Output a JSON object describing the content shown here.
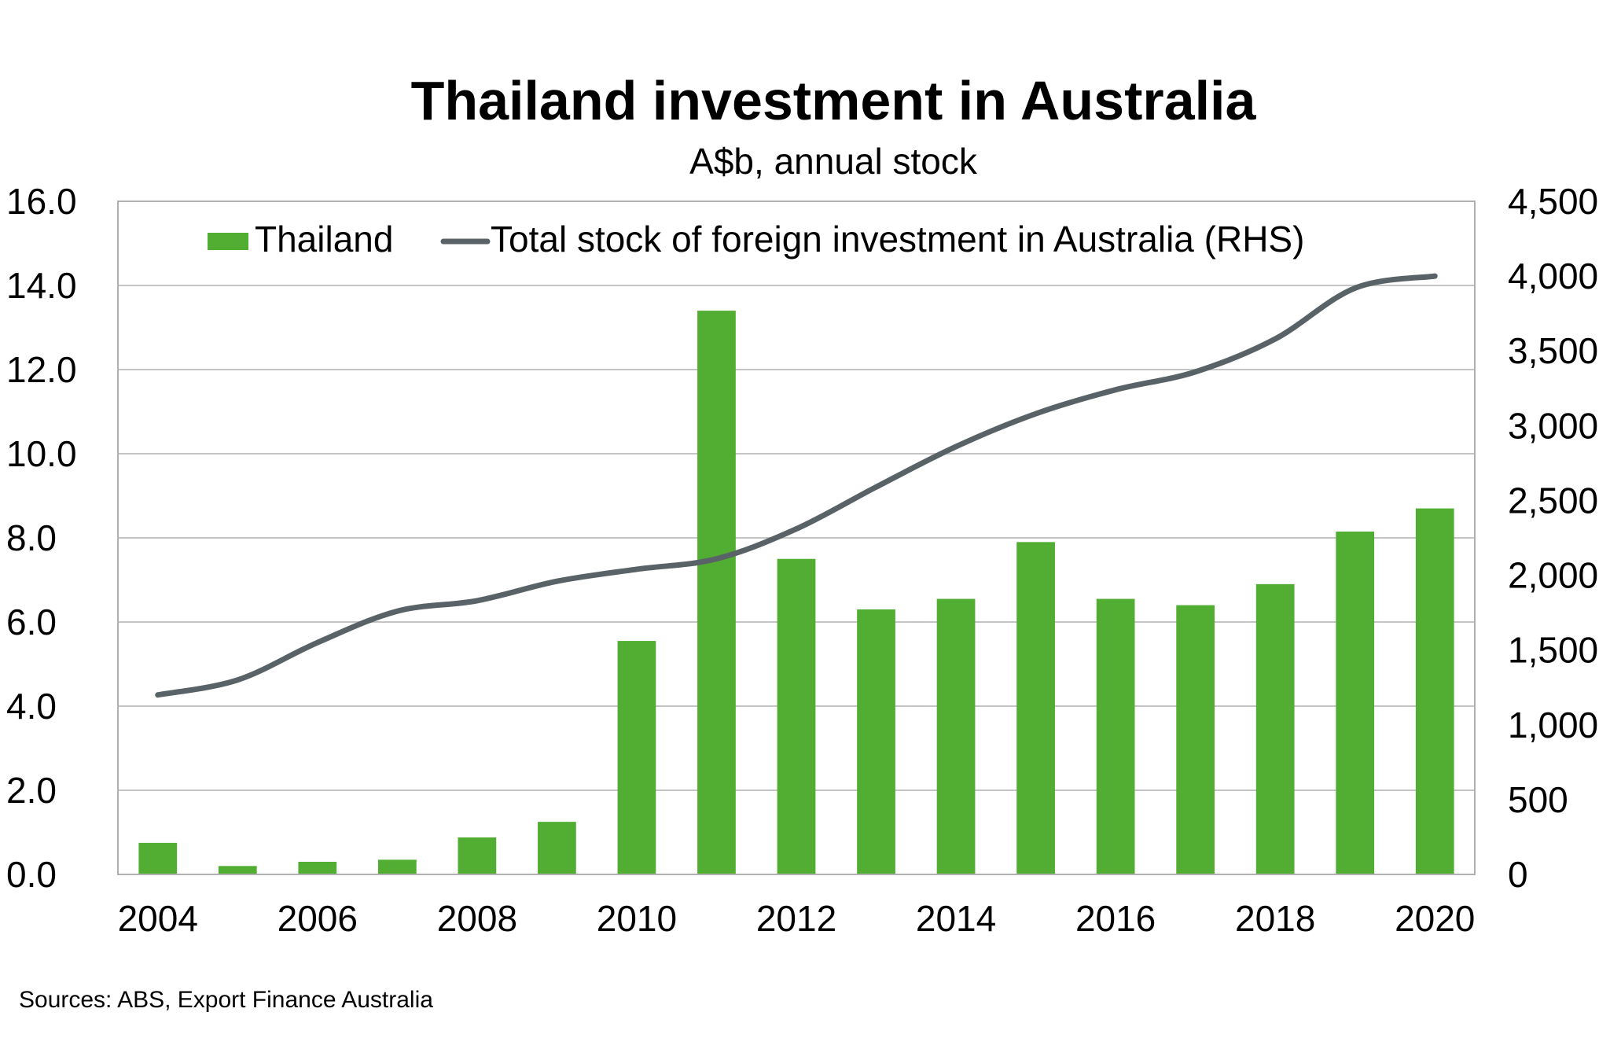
{
  "chart_data": {
    "type": "bar",
    "title": "Thailand investment in Australia",
    "subtitle": "A$b, annual stock",
    "source": "Sources: ABS, Export Finance Australia",
    "x": [
      2004,
      2005,
      2006,
      2007,
      2008,
      2009,
      2010,
      2011,
      2012,
      2013,
      2014,
      2015,
      2016,
      2017,
      2018,
      2019,
      2020
    ],
    "x_tick_labels": [
      "2004",
      "2006",
      "2008",
      "2010",
      "2012",
      "2014",
      "2016",
      "2018",
      "2020"
    ],
    "y_left": {
      "lim": [
        0,
        16
      ],
      "tick_labels": [
        "0.0",
        "2.0",
        "4.0",
        "6.0",
        "8.0",
        "10.0",
        "12.0",
        "14.0",
        "16.0"
      ]
    },
    "y_right": {
      "lim": [
        0,
        4500
      ],
      "tick_labels": [
        "0",
        "500",
        "1,000",
        "1,500",
        "2,000",
        "2,500",
        "3,000",
        "3,500",
        "4,000",
        "4,500"
      ]
    },
    "grid": true,
    "legend_position": "top",
    "series": [
      {
        "name": "Thailand",
        "type": "bar",
        "axis": "left",
        "color": "#52AE32",
        "values": [
          0.75,
          0.2,
          0.3,
          0.35,
          0.88,
          1.25,
          5.55,
          13.4,
          7.5,
          6.3,
          6.55,
          7.9,
          6.55,
          6.4,
          6.9,
          8.15,
          8.7
        ]
      },
      {
        "name": "Total stock of foreign investment in Australia (RHS)",
        "type": "line",
        "axis": "right",
        "color": "#596367",
        "values": [
          1200,
          1300,
          1550,
          1760,
          1830,
          1960,
          2040,
          2110,
          2310,
          2590,
          2860,
          3080,
          3240,
          3360,
          3580,
          3920,
          4000
        ]
      }
    ]
  }
}
